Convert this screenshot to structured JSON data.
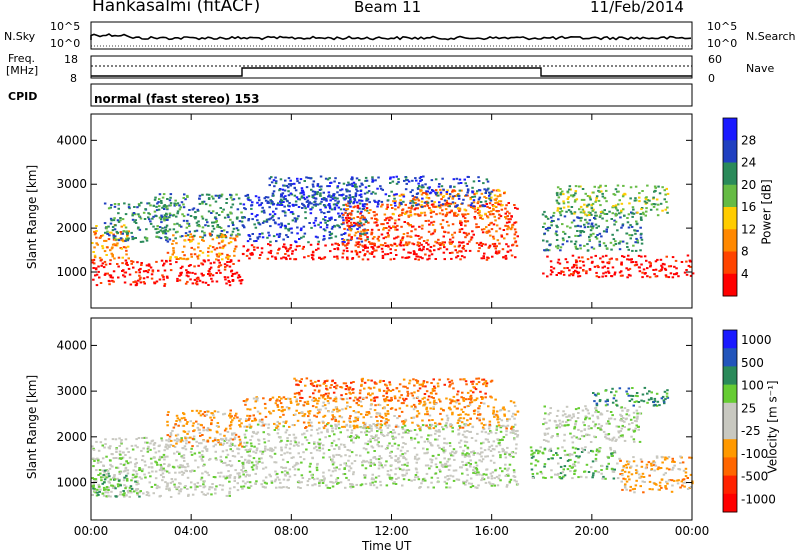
{
  "header": {
    "station": "Hankasalmi (fitACF)",
    "beam": "Beam 11",
    "date": "11/Feb/2014"
  },
  "strip_labels": {
    "nsky": "N.Sky",
    "nsearch": "N.Search",
    "freq_line1": "Freq.",
    "freq_line2": "[MHz]",
    "nave": "Nave",
    "cpid": "CPID",
    "cpid_value": "normal (fast stereo) 153"
  },
  "noise_ticks_left": [
    "10^5",
    "10^0"
  ],
  "noise_ticks_right": [
    "10^5",
    "10^0"
  ],
  "freq_ticks": [
    "18",
    "8"
  ],
  "nave_ticks": [
    "60",
    "0"
  ],
  "ylabel": "Slant Range [km]",
  "xlabel": "Time UT",
  "x_ticks": [
    "00:00",
    "04:00",
    "08:00",
    "12:00",
    "16:00",
    "20:00",
    "00:00"
  ],
  "y_ticks": [
    "4000",
    "3000",
    "2000",
    "1000"
  ],
  "colors": {
    "power_scale": [
      "#1a1aff",
      "#2040c0",
      "#2a8a5a",
      "#66bb44",
      "#ffcc00",
      "#ff8800",
      "#ff4400",
      "#ff0000"
    ],
    "velocity_scale": [
      "#1a1aff",
      "#2255bb",
      "#2a8a5a",
      "#66cc33",
      "#c8c8c0",
      "#c8c8c0",
      "#ff9900",
      "#ff6600",
      "#ff2200",
      "#ff0000"
    ]
  },
  "chart_data": [
    {
      "type": "heatmap",
      "name": "power",
      "colorbar_label": "Power [dB]",
      "colorbar_ticks": [
        "28",
        "24",
        "20",
        "16",
        "12",
        "8",
        "4"
      ],
      "xlim": [
        0,
        24
      ],
      "ylim": [
        180,
        4600
      ],
      "blobs": [
        {
          "t0": 0.0,
          "t1": 6.0,
          "r0": 700,
          "r1": 1300,
          "level": 7
        },
        {
          "t0": 0.0,
          "t1": 1.5,
          "r0": 1300,
          "r1": 2100,
          "level": 5
        },
        {
          "t0": 0.5,
          "t1": 3.5,
          "r0": 1700,
          "r1": 2600,
          "level": 2
        },
        {
          "t0": 2.5,
          "t1": 6.0,
          "r0": 1800,
          "r1": 2800,
          "level": 2
        },
        {
          "t0": 3.0,
          "t1": 5.8,
          "r0": 1300,
          "r1": 1900,
          "level": 5
        },
        {
          "t0": 6.0,
          "t1": 17.0,
          "r0": 1300,
          "r1": 1700,
          "level": 7
        },
        {
          "t0": 6.0,
          "t1": 11.0,
          "r0": 1700,
          "r1": 2800,
          "level": 1
        },
        {
          "t0": 10.0,
          "t1": 17.0,
          "r0": 1600,
          "r1": 2600,
          "level": 6
        },
        {
          "t0": 12.0,
          "t1": 16.5,
          "r0": 2300,
          "r1": 2900,
          "level": 5
        },
        {
          "t0": 7.0,
          "t1": 16.0,
          "r0": 2500,
          "r1": 3200,
          "level": 1
        },
        {
          "t0": 18.0,
          "t1": 24.0,
          "r0": 900,
          "r1": 1400,
          "level": 7
        },
        {
          "t0": 18.0,
          "t1": 22.0,
          "r0": 1500,
          "r1": 2400,
          "level": 2
        },
        {
          "t0": 18.5,
          "t1": 23.0,
          "r0": 2300,
          "r1": 3000,
          "level": 3
        }
      ]
    },
    {
      "type": "heatmap",
      "name": "velocity",
      "colorbar_label": "Velocity [m s⁻¹]",
      "colorbar_ticks": [
        "1000",
        "500",
        "100",
        "25",
        "-25",
        "-100",
        "-500",
        "-1000"
      ],
      "xlim": [
        0,
        24
      ],
      "ylim": [
        180,
        4600
      ],
      "blobs": [
        {
          "t0": 0.0,
          "t1": 6.0,
          "r0": 700,
          "r1": 2000,
          "level": 4
        },
        {
          "t0": 0.0,
          "t1": 2.0,
          "r0": 700,
          "r1": 1300,
          "level": 3
        },
        {
          "t0": 3.0,
          "t1": 6.0,
          "r0": 1800,
          "r1": 2600,
          "level": 6
        },
        {
          "t0": 6.0,
          "t1": 17.0,
          "r0": 900,
          "r1": 2300,
          "level": 4
        },
        {
          "t0": 6.0,
          "t1": 17.0,
          "r0": 2200,
          "r1": 2900,
          "level": 6
        },
        {
          "t0": 8.0,
          "t1": 16.0,
          "r0": 2800,
          "r1": 3300,
          "level": 7
        },
        {
          "t0": 17.5,
          "t1": 21.0,
          "r0": 1100,
          "r1": 1800,
          "level": 3
        },
        {
          "t0": 21.0,
          "t1": 24.0,
          "r0": 800,
          "r1": 1600,
          "level": 6
        },
        {
          "t0": 18.0,
          "t1": 22.0,
          "r0": 1900,
          "r1": 2700,
          "level": 4
        },
        {
          "t0": 20.0,
          "t1": 23.0,
          "r0": 2700,
          "r1": 3100,
          "level": 2
        }
      ]
    }
  ]
}
